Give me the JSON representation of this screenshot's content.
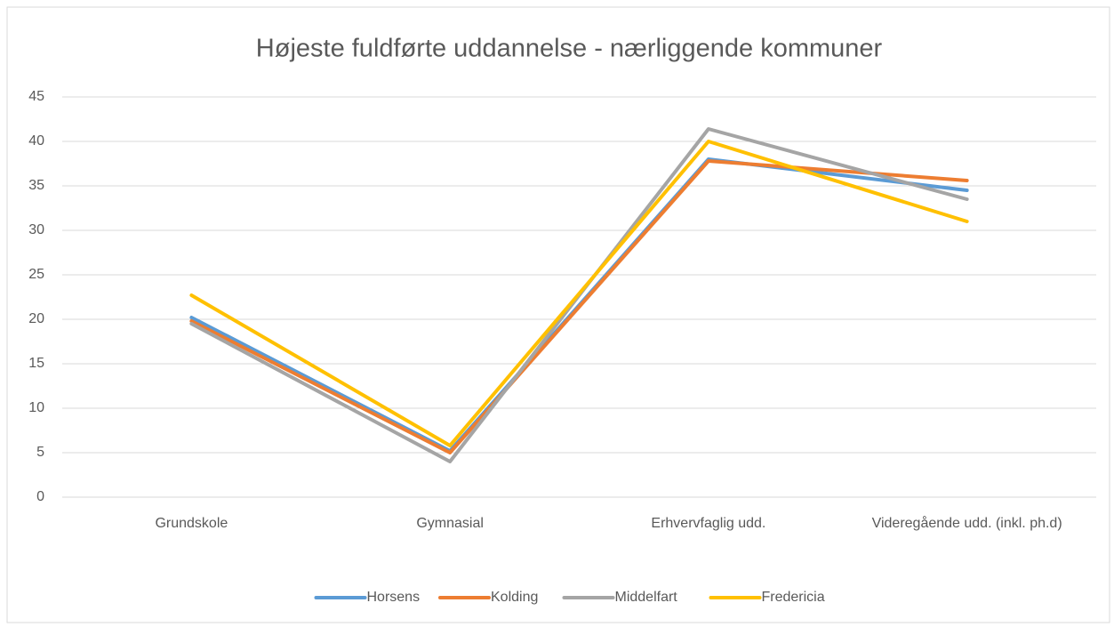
{
  "chart_data": {
    "type": "line",
    "title": "Højeste fuldførte uddannelse - nærliggende kommuner",
    "categories": [
      "Grundskole",
      "Gymnasial",
      "Erhvervfaglig udd.",
      "Videregående udd. (inkl. ph.d)"
    ],
    "series": [
      {
        "name": "Horsens",
        "color": "#5b9bd5",
        "values": [
          20.2,
          5.2,
          38.0,
          34.5
        ]
      },
      {
        "name": "Kolding",
        "color": "#ed7d31",
        "values": [
          19.8,
          5.0,
          37.8,
          35.6
        ]
      },
      {
        "name": "Middelfart",
        "color": "#a5a5a5",
        "values": [
          19.5,
          4.0,
          41.4,
          33.5
        ]
      },
      {
        "name": "Fredericia",
        "color": "#ffc000",
        "values": [
          22.7,
          5.8,
          40.0,
          31.0
        ]
      }
    ],
    "ylim": [
      0,
      45
    ],
    "yticks": [
      0,
      5,
      10,
      15,
      20,
      25,
      30,
      35,
      40,
      45
    ],
    "grid": true,
    "legend": "bottom"
  }
}
